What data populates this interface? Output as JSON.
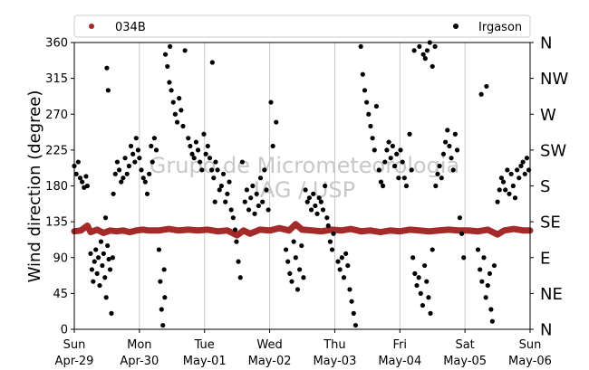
{
  "chart_data": {
    "type": "scatter",
    "ylabel": "Wind direction (degree)",
    "ylim": [
      0,
      360
    ],
    "yticks": [
      0,
      45,
      90,
      135,
      180,
      225,
      270,
      315,
      360
    ],
    "xlim_days": [
      0,
      7
    ],
    "x_ticks": [
      {
        "day": "Sun",
        "date": "Apr-29"
      },
      {
        "day": "Mon",
        "date": "Apr-30"
      },
      {
        "day": "Tue",
        "date": "May-01"
      },
      {
        "day": "Wed",
        "date": "May-02"
      },
      {
        "day": "Thu",
        "date": "May-03"
      },
      {
        "day": "Fri",
        "date": "May-04"
      },
      {
        "day": "Sat",
        "date": "May-05"
      },
      {
        "day": "Sun",
        "date": "May-06"
      }
    ],
    "compass_labels": [
      "N",
      "NE",
      "E",
      "SE",
      "S",
      "SW",
      "W",
      "NW",
      "N"
    ],
    "grid": "vertical",
    "legend_placement": "top",
    "watermark": [
      "Grupo de Micrometeorologia",
      "IAG / USP"
    ],
    "series": [
      {
        "name": "034B",
        "color": "#a52a2a",
        "points": [
          [
            0.0,
            123
          ],
          [
            0.1,
            124
          ],
          [
            0.2,
            130
          ],
          [
            0.25,
            122
          ],
          [
            0.35,
            125
          ],
          [
            0.45,
            121
          ],
          [
            0.55,
            124
          ],
          [
            0.65,
            123
          ],
          [
            0.75,
            124
          ],
          [
            0.85,
            122
          ],
          [
            0.95,
            124
          ],
          [
            1.05,
            125
          ],
          [
            1.15,
            124
          ],
          [
            1.3,
            124
          ],
          [
            1.45,
            126
          ],
          [
            1.6,
            124
          ],
          [
            1.75,
            125
          ],
          [
            1.9,
            124
          ],
          [
            2.05,
            125
          ],
          [
            2.2,
            123
          ],
          [
            2.35,
            124
          ],
          [
            2.5,
            118
          ],
          [
            2.6,
            124
          ],
          [
            2.7,
            120
          ],
          [
            2.85,
            125
          ],
          [
            3.0,
            124
          ],
          [
            3.15,
            127
          ],
          [
            3.3,
            124
          ],
          [
            3.4,
            132
          ],
          [
            3.5,
            125
          ],
          [
            3.65,
            124
          ],
          [
            3.8,
            123
          ],
          [
            3.95,
            125
          ],
          [
            4.1,
            124
          ],
          [
            4.25,
            126
          ],
          [
            4.4,
            123
          ],
          [
            4.55,
            124
          ],
          [
            4.7,
            122
          ],
          [
            4.85,
            124
          ],
          [
            5.0,
            123
          ],
          [
            5.15,
            125
          ],
          [
            5.3,
            124
          ],
          [
            5.45,
            123
          ],
          [
            5.6,
            124
          ],
          [
            5.75,
            125
          ],
          [
            5.9,
            124
          ],
          [
            6.05,
            124
          ],
          [
            6.2,
            123
          ],
          [
            6.35,
            125
          ],
          [
            6.5,
            119
          ],
          [
            6.6,
            124
          ],
          [
            6.75,
            126
          ],
          [
            6.9,
            124
          ],
          [
            7.0,
            124
          ]
        ]
      },
      {
        "name": "Irgason",
        "color": "#000000",
        "points": [
          [
            0.0,
            205
          ],
          [
            0.03,
            195
          ],
          [
            0.06,
            210
          ],
          [
            0.09,
            190
          ],
          [
            0.12,
            185
          ],
          [
            0.15,
            178
          ],
          [
            0.18,
            192
          ],
          [
            0.2,
            180
          ],
          [
            0.25,
            95
          ],
          [
            0.27,
            75
          ],
          [
            0.29,
            60
          ],
          [
            0.31,
            85
          ],
          [
            0.33,
            100
          ],
          [
            0.35,
            70
          ],
          [
            0.37,
            90
          ],
          [
            0.39,
            55
          ],
          [
            0.41,
            110
          ],
          [
            0.43,
            80
          ],
          [
            0.45,
            95
          ],
          [
            0.47,
            65
          ],
          [
            0.49,
            40
          ],
          [
            0.51,
            105
          ],
          [
            0.53,
            88
          ],
          [
            0.55,
            75
          ],
          [
            0.57,
            20
          ],
          [
            0.59,
            90
          ],
          [
            0.5,
            328
          ],
          [
            0.52,
            300
          ],
          [
            0.48,
            140
          ],
          [
            0.6,
            170
          ],
          [
            0.63,
            195
          ],
          [
            0.66,
            210
          ],
          [
            0.69,
            200
          ],
          [
            0.72,
            185
          ],
          [
            0.75,
            190
          ],
          [
            0.78,
            215
          ],
          [
            0.81,
            195
          ],
          [
            0.84,
            205
          ],
          [
            0.87,
            230
          ],
          [
            0.9,
            220
          ],
          [
            0.93,
            210
          ],
          [
            0.95,
            240
          ],
          [
            0.98,
            225
          ],
          [
            1.0,
            215
          ],
          [
            1.03,
            200
          ],
          [
            1.06,
            190
          ],
          [
            1.09,
            185
          ],
          [
            1.12,
            170
          ],
          [
            1.15,
            195
          ],
          [
            1.18,
            230
          ],
          [
            1.2,
            210
          ],
          [
            1.23,
            240
          ],
          [
            1.26,
            225
          ],
          [
            1.3,
            100
          ],
          [
            1.32,
            60
          ],
          [
            1.34,
            25
          ],
          [
            1.36,
            5
          ],
          [
            1.38,
            75
          ],
          [
            1.39,
            40
          ],
          [
            1.4,
            345
          ],
          [
            1.43,
            330
          ],
          [
            1.46,
            310
          ],
          [
            1.49,
            300
          ],
          [
            1.52,
            285
          ],
          [
            1.55,
            270
          ],
          [
            1.58,
            260
          ],
          [
            1.61,
            290
          ],
          [
            1.64,
            275
          ],
          [
            1.67,
            255
          ],
          [
            1.7,
            350
          ],
          [
            1.47,
            355
          ],
          [
            1.75,
            240
          ],
          [
            1.78,
            230
          ],
          [
            1.81,
            220
          ],
          [
            1.84,
            215
          ],
          [
            1.87,
            235
          ],
          [
            1.9,
            225
          ],
          [
            1.93,
            210
          ],
          [
            1.96,
            200
          ],
          [
            1.99,
            245
          ],
          [
            2.02,
            220
          ],
          [
            2.05,
            230
          ],
          [
            2.08,
            215
          ],
          [
            2.11,
            200
          ],
          [
            2.14,
            190
          ],
          [
            2.17,
            210
          ],
          [
            2.12,
            335
          ],
          [
            2.16,
            160
          ],
          [
            2.2,
            200
          ],
          [
            2.23,
            175
          ],
          [
            2.26,
            180
          ],
          [
            2.29,
            195
          ],
          [
            2.32,
            160
          ],
          [
            2.35,
            170
          ],
          [
            2.38,
            185
          ],
          [
            2.41,
            150
          ],
          [
            2.44,
            140
          ],
          [
            2.47,
            125
          ],
          [
            2.49,
            110
          ],
          [
            2.52,
            85
          ],
          [
            2.55,
            65
          ],
          [
            2.58,
            210
          ],
          [
            2.62,
            160
          ],
          [
            2.65,
            175
          ],
          [
            2.68,
            150
          ],
          [
            2.71,
            165
          ],
          [
            2.74,
            180
          ],
          [
            2.77,
            145
          ],
          [
            2.8,
            170
          ],
          [
            2.83,
            155
          ],
          [
            2.86,
            190
          ],
          [
            2.89,
            160
          ],
          [
            2.92,
            200
          ],
          [
            2.95,
            175
          ],
          [
            2.98,
            150
          ],
          [
            3.02,
            285
          ],
          [
            3.05,
            230
          ],
          [
            3.1,
            260
          ],
          [
            3.25,
            100
          ],
          [
            3.28,
            85
          ],
          [
            3.31,
            70
          ],
          [
            3.34,
            60
          ],
          [
            3.37,
            110
          ],
          [
            3.4,
            90
          ],
          [
            3.43,
            50
          ],
          [
            3.46,
            75
          ],
          [
            3.49,
            105
          ],
          [
            3.52,
            65
          ],
          [
            3.55,
            175
          ],
          [
            3.58,
            160
          ],
          [
            3.61,
            165
          ],
          [
            3.64,
            150
          ],
          [
            3.67,
            170
          ],
          [
            3.7,
            155
          ],
          [
            3.73,
            145
          ],
          [
            3.76,
            165
          ],
          [
            3.79,
            160
          ],
          [
            3.82,
            150
          ],
          [
            3.85,
            180
          ],
          [
            3.88,
            140
          ],
          [
            3.9,
            130
          ],
          [
            3.93,
            110
          ],
          [
            3.96,
            100
          ],
          [
            3.98,
            120
          ],
          [
            4.05,
            85
          ],
          [
            4.08,
            75
          ],
          [
            4.11,
            90
          ],
          [
            4.14,
            65
          ],
          [
            4.17,
            95
          ],
          [
            4.2,
            80
          ],
          [
            4.23,
            50
          ],
          [
            4.26,
            35
          ],
          [
            4.29,
            20
          ],
          [
            4.32,
            5
          ],
          [
            4.4,
            355
          ],
          [
            4.43,
            320
          ],
          [
            4.46,
            300
          ],
          [
            4.49,
            285
          ],
          [
            4.52,
            270
          ],
          [
            4.55,
            255
          ],
          [
            4.58,
            240
          ],
          [
            4.61,
            225
          ],
          [
            4.64,
            280
          ],
          [
            4.68,
            200
          ],
          [
            4.71,
            185
          ],
          [
            4.74,
            180
          ],
          [
            4.77,
            210
          ],
          [
            4.8,
            225
          ],
          [
            4.83,
            235
          ],
          [
            4.86,
            215
          ],
          [
            4.89,
            230
          ],
          [
            4.92,
            205
          ],
          [
            4.95,
            220
          ],
          [
            4.98,
            190
          ],
          [
            5.01,
            225
          ],
          [
            5.04,
            210
          ],
          [
            5.07,
            190
          ],
          [
            5.1,
            180
          ],
          [
            5.15,
            245
          ],
          [
            5.18,
            200
          ],
          [
            5.2,
            90
          ],
          [
            5.23,
            70
          ],
          [
            5.26,
            55
          ],
          [
            5.29,
            65
          ],
          [
            5.32,
            45
          ],
          [
            5.35,
            30
          ],
          [
            5.38,
            80
          ],
          [
            5.41,
            60
          ],
          [
            5.44,
            40
          ],
          [
            5.47,
            20
          ],
          [
            5.5,
            100
          ],
          [
            5.22,
            350
          ],
          [
            5.3,
            355
          ],
          [
            5.36,
            345
          ],
          [
            5.39,
            340
          ],
          [
            5.42,
            350
          ],
          [
            5.46,
            360
          ],
          [
            5.5,
            330
          ],
          [
            5.54,
            355
          ],
          [
            5.55,
            180
          ],
          [
            5.58,
            195
          ],
          [
            5.61,
            205
          ],
          [
            5.64,
            190
          ],
          [
            5.67,
            220
          ],
          [
            5.7,
            235
          ],
          [
            5.73,
            250
          ],
          [
            5.76,
            230
          ],
          [
            5.79,
            215
          ],
          [
            5.82,
            200
          ],
          [
            5.85,
            245
          ],
          [
            5.88,
            225
          ],
          [
            5.92,
            140
          ],
          [
            5.95,
            120
          ],
          [
            5.98,
            90
          ],
          [
            6.2,
            100
          ],
          [
            6.23,
            75
          ],
          [
            6.26,
            60
          ],
          [
            6.29,
            90
          ],
          [
            6.32,
            40
          ],
          [
            6.35,
            55
          ],
          [
            6.38,
            70
          ],
          [
            6.4,
            25
          ],
          [
            6.42,
            10
          ],
          [
            6.45,
            80
          ],
          [
            6.33,
            305
          ],
          [
            6.25,
            295
          ],
          [
            6.5,
            160
          ],
          [
            6.53,
            175
          ],
          [
            6.56,
            190
          ],
          [
            6.59,
            185
          ],
          [
            6.62,
            175
          ],
          [
            6.65,
            200
          ],
          [
            6.68,
            170
          ],
          [
            6.71,
            195
          ],
          [
            6.74,
            180
          ],
          [
            6.77,
            165
          ],
          [
            6.8,
            200
          ],
          [
            6.83,
            190
          ],
          [
            6.86,
            205
          ],
          [
            6.89,
            210
          ],
          [
            6.92,
            195
          ],
          [
            6.95,
            215
          ],
          [
            6.98,
            200
          ]
        ]
      }
    ]
  }
}
